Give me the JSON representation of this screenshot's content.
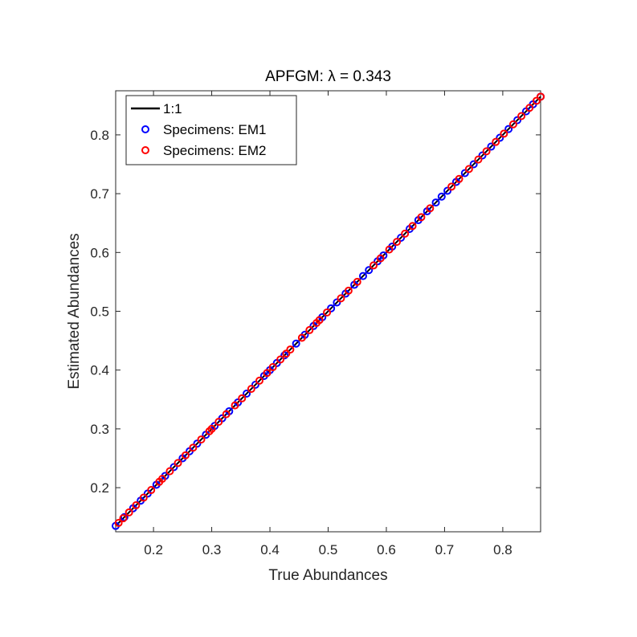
{
  "chart_data": {
    "type": "scatter",
    "title": "APFGM: λ = 0.343",
    "xlabel": "True Abundances",
    "ylabel": "Estimated Abundances",
    "xlim": [
      0.135,
      0.865
    ],
    "ylim": [
      0.125,
      0.875
    ],
    "x_ticks": [
      0.2,
      0.3,
      0.4,
      0.5,
      0.6,
      0.7,
      0.8
    ],
    "y_ticks": [
      0.2,
      0.3,
      0.4,
      0.5,
      0.6,
      0.7,
      0.8
    ],
    "x_tick_labels": [
      "0.2",
      "0.3",
      "0.4",
      "0.5",
      "0.6",
      "0.7",
      "0.8"
    ],
    "y_tick_labels": [
      "0.2",
      "0.3",
      "0.4",
      "0.5",
      "0.6",
      "0.7",
      "0.8"
    ],
    "grid": false,
    "legend_position": "top-left",
    "reference_line": {
      "name": "1:1",
      "x": [
        0.135,
        0.865
      ],
      "y": [
        0.135,
        0.865
      ],
      "color": "#000000"
    },
    "series": [
      {
        "name": "Specimens: EM1",
        "color": "#0000ff",
        "marker": "circle-open",
        "points": [
          [
            0.135,
            0.135
          ],
          [
            0.15,
            0.15
          ],
          [
            0.165,
            0.165
          ],
          [
            0.178,
            0.178
          ],
          [
            0.19,
            0.19
          ],
          [
            0.205,
            0.205
          ],
          [
            0.22,
            0.22
          ],
          [
            0.235,
            0.235
          ],
          [
            0.25,
            0.25
          ],
          [
            0.262,
            0.262
          ],
          [
            0.275,
            0.275
          ],
          [
            0.29,
            0.29
          ],
          [
            0.305,
            0.305
          ],
          [
            0.318,
            0.318
          ],
          [
            0.33,
            0.33
          ],
          [
            0.345,
            0.345
          ],
          [
            0.36,
            0.36
          ],
          [
            0.375,
            0.375
          ],
          [
            0.39,
            0.39
          ],
          [
            0.4,
            0.4
          ],
          [
            0.412,
            0.412
          ],
          [
            0.425,
            0.425
          ],
          [
            0.445,
            0.445
          ],
          [
            0.46,
            0.46
          ],
          [
            0.475,
            0.475
          ],
          [
            0.49,
            0.49
          ],
          [
            0.505,
            0.505
          ],
          [
            0.515,
            0.515
          ],
          [
            0.53,
            0.53
          ],
          [
            0.545,
            0.545
          ],
          [
            0.56,
            0.56
          ],
          [
            0.57,
            0.57
          ],
          [
            0.585,
            0.585
          ],
          [
            0.595,
            0.595
          ],
          [
            0.61,
            0.61
          ],
          [
            0.625,
            0.625
          ],
          [
            0.64,
            0.64
          ],
          [
            0.655,
            0.655
          ],
          [
            0.67,
            0.67
          ],
          [
            0.685,
            0.685
          ],
          [
            0.695,
            0.695
          ],
          [
            0.705,
            0.705
          ],
          [
            0.72,
            0.72
          ],
          [
            0.735,
            0.735
          ],
          [
            0.75,
            0.75
          ],
          [
            0.765,
            0.765
          ],
          [
            0.78,
            0.78
          ],
          [
            0.795,
            0.795
          ],
          [
            0.81,
            0.81
          ],
          [
            0.825,
            0.825
          ],
          [
            0.84,
            0.84
          ],
          [
            0.852,
            0.852
          ],
          [
            0.865,
            0.865
          ]
        ]
      },
      {
        "name": "Specimens: EM2",
        "color": "#ff0000",
        "marker": "circle-open",
        "points": [
          [
            0.14,
            0.14
          ],
          [
            0.148,
            0.148
          ],
          [
            0.158,
            0.158
          ],
          [
            0.17,
            0.17
          ],
          [
            0.183,
            0.183
          ],
          [
            0.196,
            0.196
          ],
          [
            0.21,
            0.21
          ],
          [
            0.215,
            0.215
          ],
          [
            0.228,
            0.228
          ],
          [
            0.242,
            0.242
          ],
          [
            0.255,
            0.255
          ],
          [
            0.268,
            0.268
          ],
          [
            0.282,
            0.282
          ],
          [
            0.296,
            0.296
          ],
          [
            0.3,
            0.3
          ],
          [
            0.312,
            0.312
          ],
          [
            0.325,
            0.325
          ],
          [
            0.34,
            0.34
          ],
          [
            0.352,
            0.352
          ],
          [
            0.368,
            0.368
          ],
          [
            0.382,
            0.382
          ],
          [
            0.395,
            0.395
          ],
          [
            0.405,
            0.405
          ],
          [
            0.418,
            0.418
          ],
          [
            0.428,
            0.428
          ],
          [
            0.435,
            0.435
          ],
          [
            0.455,
            0.455
          ],
          [
            0.468,
            0.468
          ],
          [
            0.48,
            0.48
          ],
          [
            0.485,
            0.485
          ],
          [
            0.498,
            0.498
          ],
          [
            0.522,
            0.522
          ],
          [
            0.535,
            0.535
          ],
          [
            0.55,
            0.55
          ],
          [
            0.578,
            0.578
          ],
          [
            0.59,
            0.59
          ],
          [
            0.605,
            0.605
          ],
          [
            0.618,
            0.618
          ],
          [
            0.632,
            0.632
          ],
          [
            0.645,
            0.645
          ],
          [
            0.66,
            0.66
          ],
          [
            0.675,
            0.675
          ],
          [
            0.712,
            0.712
          ],
          [
            0.725,
            0.725
          ],
          [
            0.742,
            0.742
          ],
          [
            0.758,
            0.758
          ],
          [
            0.772,
            0.772
          ],
          [
            0.788,
            0.788
          ],
          [
            0.802,
            0.802
          ],
          [
            0.818,
            0.818
          ],
          [
            0.832,
            0.832
          ],
          [
            0.846,
            0.846
          ],
          [
            0.858,
            0.858
          ],
          [
            0.865,
            0.865
          ]
        ]
      }
    ]
  }
}
